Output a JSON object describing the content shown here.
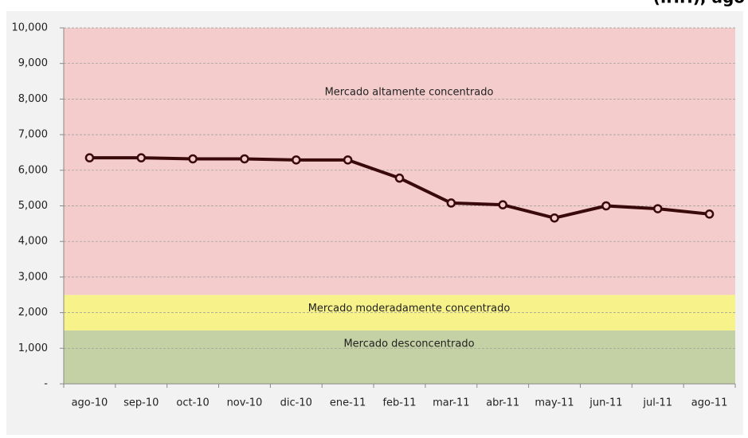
{
  "chart_data": {
    "type": "line",
    "title": "(IHH), ago",
    "categories": [
      "ago-10",
      "sep-10",
      "oct-10",
      "nov-10",
      "dic-10",
      "ene-11",
      "feb-11",
      "mar-11",
      "abr-11",
      "may-11",
      "jun-11",
      "jul-11",
      "ago-11"
    ],
    "series": [
      {
        "name": "IHH",
        "color": "#3a0a0a",
        "values": [
          6350,
          6350,
          6320,
          6320,
          6290,
          6290,
          5780,
          5080,
          5030,
          4660,
          5000,
          4920,
          4770
        ]
      }
    ],
    "ylim": [
      0,
      10000
    ],
    "yticks": [
      {
        "value": 0,
        "label": "-"
      },
      {
        "value": 1000,
        "label": "1,000"
      },
      {
        "value": 2000,
        "label": "2,000"
      },
      {
        "value": 3000,
        "label": "3,000"
      },
      {
        "value": 4000,
        "label": "4,000"
      },
      {
        "value": 5000,
        "label": "5,000"
      },
      {
        "value": 6000,
        "label": "6,000"
      },
      {
        "value": 7000,
        "label": "7,000"
      },
      {
        "value": 8000,
        "label": "8,000"
      },
      {
        "value": 9000,
        "label": "9,000"
      },
      {
        "value": 10000,
        "label": "10,000"
      }
    ],
    "grid": true,
    "bands": [
      {
        "label": "Mercado desconcentrado",
        "from": 0,
        "to": 1500,
        "color": "#c4d1a5"
      },
      {
        "label": "Mercado moderadamente concentrado",
        "from": 1500,
        "to": 2500,
        "color": "#f7f28a"
      },
      {
        "label": "Mercado altamente concentrado",
        "from": 2500,
        "to": 10000,
        "color": "#f4cccc"
      }
    ]
  }
}
